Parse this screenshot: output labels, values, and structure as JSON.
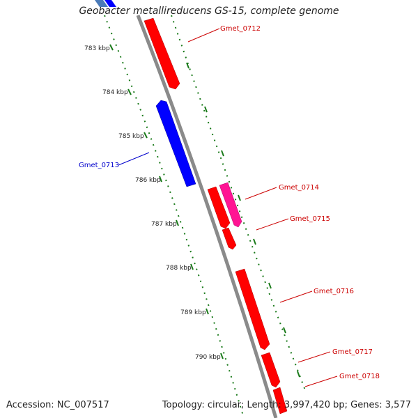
{
  "title": "Geobacter metallireducens GS-15, complete genome",
  "footer": {
    "accession": "Accession: NC_007517",
    "summary": "Topology: circular; Length: 3,997,420 bp; Genes: 3,577"
  },
  "colors": {
    "backbone": "#8a8a8a",
    "forward_gene": "#ff0000",
    "reverse_gene": "#0000ff",
    "rna_gene": "#ff1493",
    "tick": "#1a7a1a"
  },
  "ticks": [
    "783 kbp",
    "784 kbp",
    "785 kbp",
    "786 kbp",
    "787 kbp",
    "788 kbp",
    "789 kbp",
    "790 kbp"
  ],
  "genes": [
    {
      "label": "Gmet_0712",
      "strand": "+"
    },
    {
      "label": "Gmet_0713",
      "strand": "-"
    },
    {
      "label": "Gmet_0714",
      "strand": "+"
    },
    {
      "label": "Gmet_0715",
      "strand": "+"
    },
    {
      "label": "Gmet_0716",
      "strand": "+"
    },
    {
      "label": "Gmet_0717",
      "strand": "+"
    },
    {
      "label": "Gmet_0718",
      "strand": "+"
    }
  ]
}
